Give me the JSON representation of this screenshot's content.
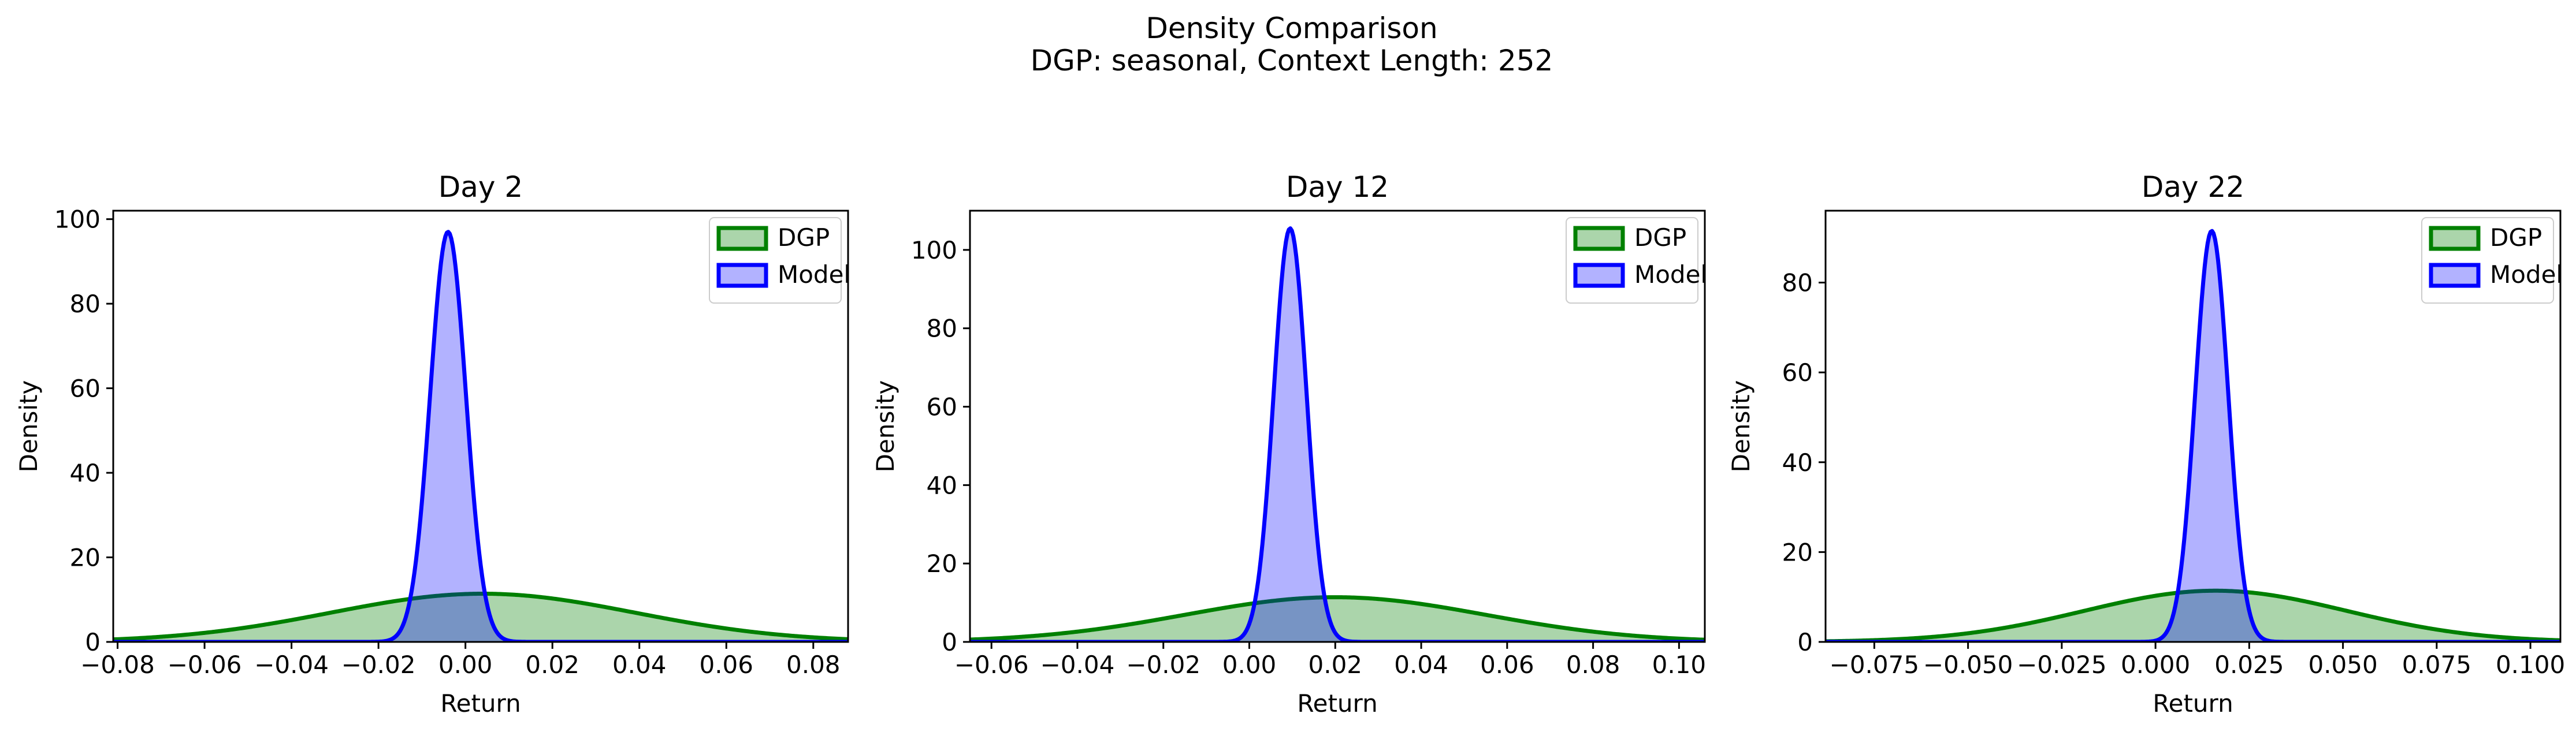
{
  "figure": {
    "title_line1": "Density Comparison",
    "title_line2": "DGP: seasonal, Context Length: 252"
  },
  "colors": {
    "dgp_line": "#008000",
    "dgp_fill": "#008000",
    "model_line": "#0000ff",
    "model_fill": "#0000ff",
    "background": "#ffffff",
    "axes": "#000000"
  },
  "chart_data": [
    {
      "type": "area",
      "title": "Day 2",
      "xlabel": "Return",
      "ylabel": "Density",
      "xlim": [
        -0.081,
        0.088
      ],
      "ylim": [
        0,
        102
      ],
      "xticks": [
        -0.08,
        -0.06,
        -0.04,
        -0.02,
        0.0,
        0.02,
        0.04,
        0.06,
        0.08
      ],
      "xtick_labels": [
        "−0.08",
        "−0.06",
        "−0.04",
        "−0.02",
        "0.00",
        "0.02",
        "0.04",
        "0.06",
        "0.08"
      ],
      "yticks": [
        0,
        20,
        40,
        60,
        80,
        100
      ],
      "ytick_labels": [
        "0",
        "20",
        "40",
        "60",
        "80",
        "100"
      ],
      "legend_position": "top-right",
      "grid": false,
      "series": [
        {
          "name": "DGP",
          "distribution": "normal",
          "mean": 0.004,
          "std": 0.035,
          "peak_density": 11.4
        },
        {
          "name": "Model",
          "distribution": "normal",
          "mean": -0.004,
          "std": 0.0041,
          "peak_density": 97
        }
      ]
    },
    {
      "type": "area",
      "title": "Day 12",
      "xlabel": "Return",
      "ylabel": "Density",
      "xlim": [
        -0.065,
        0.106
      ],
      "ylim": [
        0,
        110
      ],
      "xticks": [
        -0.06,
        -0.04,
        -0.02,
        0.0,
        0.02,
        0.04,
        0.06,
        0.08,
        0.1
      ],
      "xtick_labels": [
        "−0.06",
        "−0.04",
        "−0.02",
        "0.00",
        "0.02",
        "0.04",
        "0.06",
        "0.08",
        "0.10"
      ],
      "yticks": [
        0,
        20,
        40,
        60,
        80,
        100
      ],
      "ytick_labels": [
        "0",
        "20",
        "40",
        "60",
        "80",
        "100"
      ],
      "legend_position": "top-right",
      "grid": false,
      "series": [
        {
          "name": "DGP",
          "distribution": "normal",
          "mean": 0.02,
          "std": 0.035,
          "peak_density": 11.4
        },
        {
          "name": "Model",
          "distribution": "normal",
          "mean": 0.0095,
          "std": 0.0038,
          "peak_density": 105.5
        }
      ]
    },
    {
      "type": "area",
      "title": "Day 22",
      "xlabel": "Return",
      "ylabel": "Density",
      "xlim": [
        -0.088,
        0.108
      ],
      "ylim": [
        0,
        96
      ],
      "xticks": [
        -0.075,
        -0.05,
        -0.025,
        0.0,
        0.025,
        0.05,
        0.075,
        0.1
      ],
      "xtick_labels": [
        "−0.075",
        "−0.050",
        "−0.025",
        "0.000",
        "0.025",
        "0.050",
        "0.075",
        "0.100"
      ],
      "yticks": [
        0,
        20,
        40,
        60,
        80
      ],
      "ytick_labels": [
        "0",
        "20",
        "40",
        "60",
        "80"
      ],
      "legend_position": "top-right",
      "grid": false,
      "series": [
        {
          "name": "DGP",
          "distribution": "normal",
          "mean": 0.016,
          "std": 0.035,
          "peak_density": 11.4
        },
        {
          "name": "Model",
          "distribution": "normal",
          "mean": 0.015,
          "std": 0.0044,
          "peak_density": 91.5
        }
      ]
    }
  ]
}
